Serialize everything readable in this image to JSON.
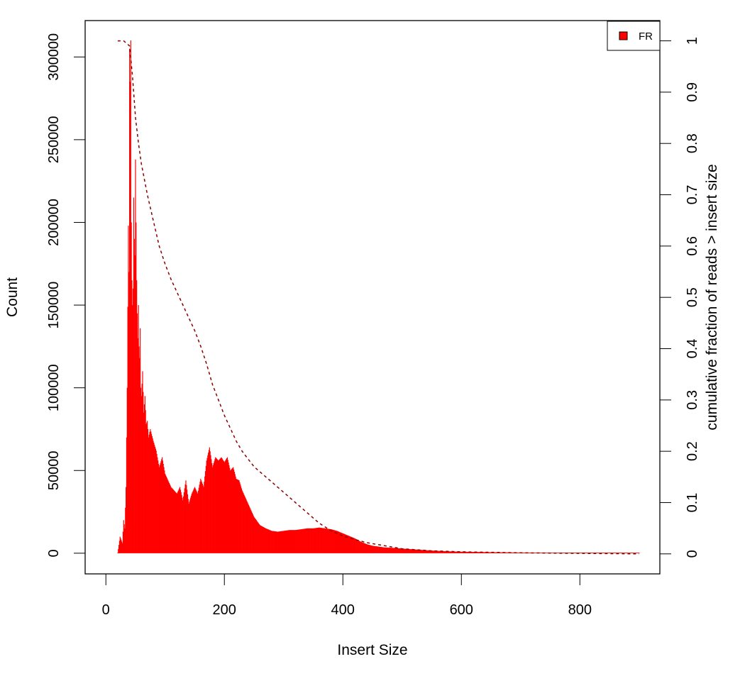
{
  "chart_data": {
    "type": "bar",
    "xlabel": "Insert Size",
    "ylabel": "Count",
    "ylabel_right": "cumulative fraction of reads > insert size",
    "xlim": [
      -35,
      935
    ],
    "ylim": [
      -12500,
      322000
    ],
    "ylim_right": [
      -0.039,
      1.0395
    ],
    "x_ticks": [
      0,
      200,
      400,
      600,
      800
    ],
    "x_tick_labels": [
      "0",
      "200",
      "400",
      "600",
      "800"
    ],
    "y_ticks": [
      0,
      50000,
      100000,
      150000,
      200000,
      250000,
      300000
    ],
    "y_tick_labels": [
      "0",
      "50000",
      "100000",
      "150000",
      "200000",
      "250000",
      "300000"
    ],
    "y_right_ticks": [
      0,
      0.1,
      0.2,
      0.3,
      0.4,
      0.5,
      0.6,
      0.7,
      0.8,
      0.9,
      1
    ],
    "y_right_tick_labels": [
      "0",
      "0.1",
      "0.2",
      "0.3",
      "0.4",
      "0.5",
      "0.6",
      "0.7",
      "0.8",
      "0.9",
      "1"
    ],
    "legend": {
      "position": "top-right",
      "entries": [
        "FR"
      ]
    },
    "series": [
      {
        "name": "FR",
        "kind": "histogram",
        "color": "#ff0000",
        "x": [
          20,
          24,
          28,
          30,
          32,
          34,
          36,
          38,
          39,
          40,
          41,
          42,
          43,
          44,
          45,
          46,
          47,
          48,
          49,
          50,
          51,
          52,
          53,
          54,
          55,
          56,
          57,
          58,
          59,
          60,
          62,
          64,
          66,
          68,
          70,
          72,
          75,
          80,
          85,
          90,
          95,
          100,
          105,
          110,
          115,
          120,
          125,
          130,
          135,
          140,
          145,
          150,
          155,
          160,
          165,
          170,
          175,
          180,
          185,
          190,
          195,
          200,
          205,
          210,
          215,
          220,
          225,
          230,
          235,
          240,
          245,
          250,
          260,
          270,
          280,
          290,
          300,
          310,
          320,
          330,
          340,
          350,
          360,
          370,
          380,
          390,
          400,
          410,
          420,
          430,
          440,
          450,
          460,
          470,
          480,
          490,
          500,
          520,
          540,
          560,
          580,
          600,
          650,
          700,
          750,
          800,
          850,
          900
        ],
        "y": [
          0,
          10000,
          6000,
          20000,
          15000,
          40000,
          100000,
          198000,
          170000,
          305000,
          285000,
          310000,
          200000,
          165000,
          150000,
          160000,
          215000,
          190000,
          180000,
          238000,
          200000,
          165000,
          145000,
          130000,
          150000,
          125000,
          118000,
          136000,
          100000,
          95000,
          110000,
          85000,
          95000,
          78000,
          80000,
          70000,
          75000,
          68000,
          62000,
          52000,
          58000,
          48000,
          44000,
          40000,
          38000,
          36000,
          40000,
          32000,
          44000,
          30000,
          36000,
          40000,
          36000,
          45000,
          40000,
          56000,
          64000,
          52000,
          58000,
          56000,
          58000,
          55000,
          58000,
          50000,
          52000,
          45000,
          44000,
          38000,
          34000,
          30000,
          26000,
          22000,
          17000,
          15000,
          13500,
          13000,
          13500,
          14000,
          14000,
          14500,
          15000,
          15000,
          15500,
          15000,
          14500,
          13500,
          12000,
          10500,
          9000,
          7000,
          5500,
          4500,
          4000,
          3500,
          3300,
          3100,
          2800,
          2300,
          1800,
          1400,
          1100,
          900,
          600,
          400,
          300,
          200,
          100,
          50
        ]
      },
      {
        "name": "cumulative",
        "kind": "line",
        "style": "dashed",
        "color": "#8b0000",
        "x": [
          20,
          30,
          35,
          40,
          45,
          50,
          55,
          60,
          70,
          80,
          90,
          100,
          110,
          120,
          130,
          140,
          150,
          160,
          170,
          180,
          190,
          200,
          210,
          220,
          230,
          240,
          250,
          260,
          270,
          280,
          290,
          300,
          320,
          340,
          360,
          380,
          400,
          420,
          440,
          460,
          480,
          500,
          550,
          600,
          650,
          700,
          800,
          900
        ],
        "y": [
          1.0,
          1.0,
          0.995,
          0.99,
          0.93,
          0.85,
          0.8,
          0.76,
          0.7,
          0.65,
          0.6,
          0.565,
          0.535,
          0.51,
          0.485,
          0.46,
          0.435,
          0.405,
          0.37,
          0.33,
          0.3,
          0.27,
          0.245,
          0.22,
          0.2,
          0.185,
          0.17,
          0.16,
          0.15,
          0.14,
          0.13,
          0.12,
          0.1,
          0.08,
          0.06,
          0.045,
          0.035,
          0.028,
          0.022,
          0.018,
          0.014,
          0.01,
          0.006,
          0.004,
          0.003,
          0.002,
          0.001,
          0.0
        ]
      }
    ]
  }
}
